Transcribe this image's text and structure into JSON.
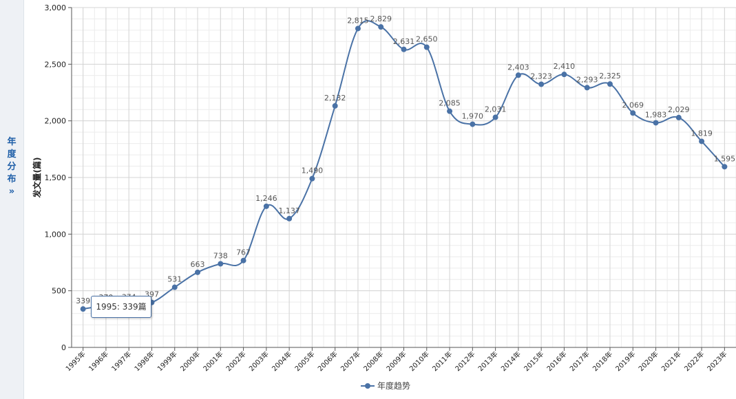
{
  "sidebar": {
    "tab_chars": [
      "年",
      "度",
      "分",
      "布",
      "»"
    ]
  },
  "tooltip": {
    "text": "1995: 339篇"
  },
  "colors": {
    "series": "#4a72a6",
    "grid": "#d4d4d4",
    "label": "#555555"
  },
  "chart_data": {
    "type": "line",
    "title": "",
    "xlabel": "",
    "ylabel": "发文量(篇)",
    "ylim": [
      0,
      3000
    ],
    "yticks": [
      0,
      500,
      1000,
      1500,
      2000,
      2500,
      3000
    ],
    "ytick_labels": [
      "0",
      "500",
      "1,000",
      "1,500",
      "2,000",
      "2,500",
      "3,000"
    ],
    "grid": true,
    "legend": "bottom-center",
    "categories": [
      "1995年",
      "1996年",
      "1997年",
      "1998年",
      "1999年",
      "2000年",
      "2001年",
      "2002年",
      "2003年",
      "2004年",
      "2005年",
      "2006年",
      "2007年",
      "2008年",
      "2009年",
      "2010年",
      "2011年",
      "2012年",
      "2013年",
      "2014年",
      "2015年",
      "2016年",
      "2017年",
      "2018年",
      "2019年",
      "2020年",
      "2021年",
      "2022年",
      "2023年"
    ],
    "series": [
      {
        "name": "年度趋势",
        "values": [
          339,
          370,
          374,
          397,
          531,
          663,
          738,
          767,
          1246,
          1137,
          1490,
          2132,
          2815,
          2829,
          2631,
          2650,
          2085,
          1970,
          2031,
          2403,
          2323,
          2410,
          2293,
          2325,
          2069,
          1983,
          2029,
          1819,
          1595
        ],
        "labels": [
          "339",
          "370",
          "374",
          "397",
          "531",
          "663",
          "738",
          "767",
          "1,246",
          "1,137",
          "1,490",
          "2,132",
          "2,815",
          "2,829",
          "2,631",
          "2,650",
          "2,085",
          "1,970",
          "2,031",
          "2,403",
          "2,323",
          "2,410",
          "2,293",
          "2,325",
          "2,069",
          "1,983",
          "2,029",
          "1,819",
          "1,595"
        ]
      }
    ]
  }
}
